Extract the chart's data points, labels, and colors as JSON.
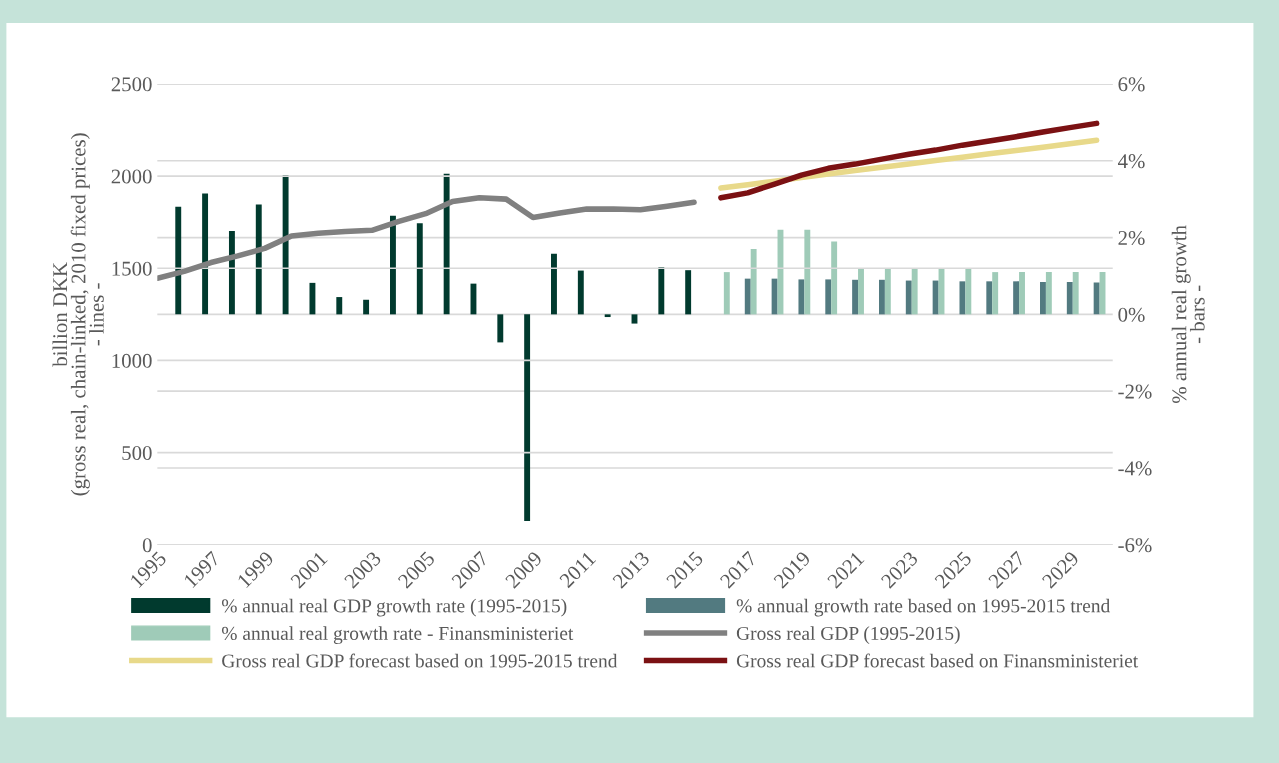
{
  "chart_data": {
    "type": "bar",
    "ylabel": "billion DKK\n(gross real, chain-linked, 2010 fixed prices)\n- lines -",
    "y2label": "% annual real growth\n- bars -",
    "categories": [
      "1995",
      null,
      "1997",
      null,
      "1999",
      null,
      "2001",
      null,
      "2003",
      null,
      "2005",
      null,
      "2007",
      null,
      "2009",
      null,
      "2011",
      null,
      "2013",
      null,
      "2015",
      null,
      "2017",
      null,
      "2019",
      null,
      "2021",
      null,
      "2023",
      null,
      "2025",
      null,
      "2027",
      null,
      "2029",
      null
    ],
    "ylim": [
      0,
      2500
    ],
    "yticks": [
      0,
      500,
      1000,
      1500,
      2000,
      2500
    ],
    "y2lim": [
      -6,
      6
    ],
    "y2ticks": [
      {
        "value": -6,
        "label": "-6%"
      },
      {
        "value": -4,
        "label": "-4%"
      },
      {
        "value": -2,
        "label": "-2%"
      },
      {
        "value": 0,
        "label": "0%"
      },
      {
        "value": 2,
        "label": "2%"
      },
      {
        "value": 4,
        "label": "4%"
      },
      {
        "value": 6,
        "label": "6%"
      }
    ],
    "grid": "y",
    "legend": "bottom",
    "series": [
      {
        "name": "% annual real GDP growth rate (1995-2015)",
        "axis": "y2",
        "color": "#013a2e",
        "values": [
          null,
          2.8,
          3.15,
          2.17,
          2.86,
          3.63,
          0.82,
          0.45,
          0.38,
          2.57,
          2.37,
          3.66,
          0.8,
          -0.73,
          -5.38,
          1.58,
          1.14,
          -0.07,
          -0.24,
          1.23,
          1.15,
          null,
          null,
          null,
          null,
          null,
          null,
          null,
          null,
          null,
          null,
          null,
          null,
          null,
          null,
          null
        ]
      },
      {
        "name": "% annual growth rate based on 1995-2015 trend",
        "axis": "y2",
        "color": "#527a80",
        "values": [
          null,
          null,
          null,
          null,
          null,
          null,
          null,
          null,
          null,
          null,
          null,
          null,
          null,
          null,
          null,
          null,
          null,
          null,
          null,
          null,
          null,
          null,
          0.93,
          0.93,
          0.91,
          0.91,
          0.9,
          0.9,
          0.88,
          0.88,
          0.86,
          0.86,
          0.86,
          0.84,
          0.84,
          0.83
        ]
      },
      {
        "name": "% annual real growth rate - Finansministeriet",
        "axis": "y2",
        "color": "#9fcbb8",
        "values": [
          null,
          null,
          null,
          null,
          null,
          null,
          null,
          null,
          null,
          null,
          null,
          null,
          null,
          null,
          null,
          null,
          null,
          null,
          null,
          null,
          null,
          1.1,
          1.7,
          2.2,
          2.2,
          1.9,
          1.2,
          1.2,
          1.2,
          1.2,
          1.2,
          1.1,
          1.1,
          1.1,
          1.1,
          1.1
        ]
      },
      {
        "name": "Gross real GDP (1995-2015)",
        "type": "line",
        "color": "#808080",
        "values": [
          1446,
          1483,
          1531,
          1567,
          1608,
          1675,
          1690,
          1700,
          1706,
          1754,
          1796,
          1862,
          1883,
          1875,
          1775,
          1800,
          1821,
          1821,
          1817,
          1837,
          1858,
          null,
          null,
          null,
          null,
          null,
          null,
          null,
          null,
          null,
          null,
          null,
          null,
          null,
          null,
          null
        ]
      },
      {
        "name": "Gross real GDP forecast based on 1995-2015 trend",
        "type": "line",
        "color": "#e8d98a",
        "values": [
          null,
          null,
          null,
          null,
          null,
          null,
          null,
          null,
          null,
          null,
          null,
          null,
          null,
          null,
          null,
          null,
          null,
          null,
          null,
          null,
          null,
          1935,
          1953,
          1972,
          1992,
          2012,
          2030,
          2048,
          2066,
          2084,
          2102,
          2121,
          2139,
          2157,
          2175,
          2194
        ]
      },
      {
        "name": "Gross real GDP forecast based on Finansministeriet",
        "type": "line",
        "color": "#7b1113",
        "values": [
          null,
          null,
          null,
          null,
          null,
          null,
          null,
          null,
          null,
          null,
          null,
          null,
          null,
          null,
          null,
          null,
          null,
          null,
          null,
          null,
          null,
          1882,
          1909,
          1957,
          2005,
          2042,
          2065,
          2092,
          2118,
          2141,
          2168,
          2190,
          2214,
          2239,
          2263,
          2286
        ]
      }
    ]
  }
}
